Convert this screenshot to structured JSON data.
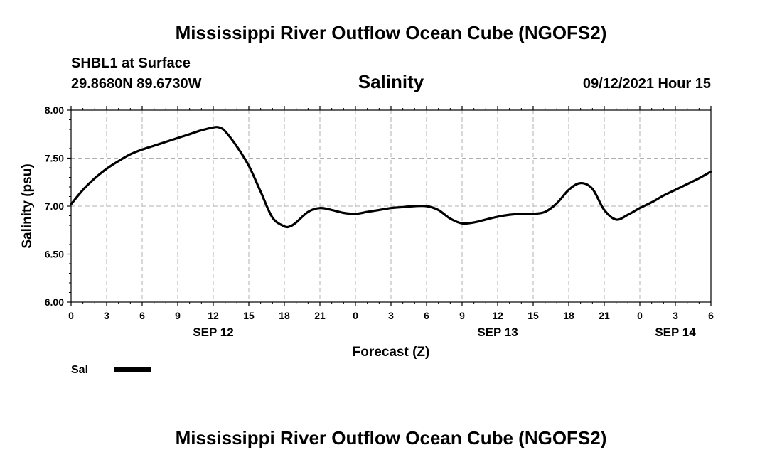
{
  "header": {
    "title": "Mississippi River Outflow Ocean Cube (NGOFS2)",
    "station": "SHBL1 at Surface",
    "coords": "29.8680N  89.6730W",
    "datetime": "09/12/2021 Hour 15"
  },
  "footer": {
    "title": "Mississippi River Outflow Ocean Cube (NGOFS2)"
  },
  "colors": {
    "line": "#000000",
    "grid": "#b0b0b0",
    "axis": "#000000"
  },
  "chart_data": {
    "type": "line",
    "title": "Salinity",
    "xlabel": "Forecast (Z)",
    "ylabel": "Salinity (psu)",
    "xlim": [
      0,
      54
    ],
    "ylim": [
      6.0,
      8.0
    ],
    "grid": true,
    "legend_position": "bottom-left",
    "yticks": [
      "6.00",
      "6.50",
      "7.00",
      "7.50",
      "8.00"
    ],
    "xticks": [
      "0",
      "3",
      "6",
      "9",
      "12",
      "15",
      "18",
      "21",
      "0",
      "3",
      "6",
      "9",
      "12",
      "15",
      "18",
      "21",
      "0",
      "3",
      "6"
    ],
    "day_labels": [
      {
        "label": "SEP 12",
        "at": 12
      },
      {
        "label": "SEP 13",
        "at": 36
      },
      {
        "label": "SEP 14",
        "at": 51
      }
    ],
    "series": [
      {
        "name": "Sal",
        "x": [
          0,
          1,
          2,
          3,
          4,
          5,
          6,
          7,
          8,
          9,
          10,
          11,
          12,
          12.5,
          13,
          14,
          15,
          16,
          17,
          18,
          18.5,
          19,
          20,
          21,
          22,
          23,
          24,
          25,
          26,
          27,
          28,
          29,
          30,
          31,
          32,
          33,
          34,
          35,
          36,
          37,
          38,
          39,
          40,
          41,
          42,
          43,
          44,
          45,
          46,
          47,
          48,
          49,
          50,
          51,
          52,
          53,
          54
        ],
        "values": [
          7.02,
          7.17,
          7.29,
          7.39,
          7.47,
          7.54,
          7.59,
          7.63,
          7.67,
          7.71,
          7.75,
          7.79,
          7.82,
          7.82,
          7.78,
          7.62,
          7.42,
          7.15,
          6.88,
          6.79,
          6.79,
          6.83,
          6.94,
          6.98,
          6.96,
          6.93,
          6.92,
          6.94,
          6.96,
          6.98,
          6.99,
          7.0,
          7.0,
          6.96,
          6.87,
          6.82,
          6.83,
          6.86,
          6.89,
          6.91,
          6.92,
          6.92,
          6.94,
          7.03,
          7.17,
          7.24,
          7.18,
          6.96,
          6.86,
          6.91,
          6.98,
          7.04,
          7.11,
          7.17,
          7.23,
          7.29,
          7.36
        ]
      }
    ]
  }
}
